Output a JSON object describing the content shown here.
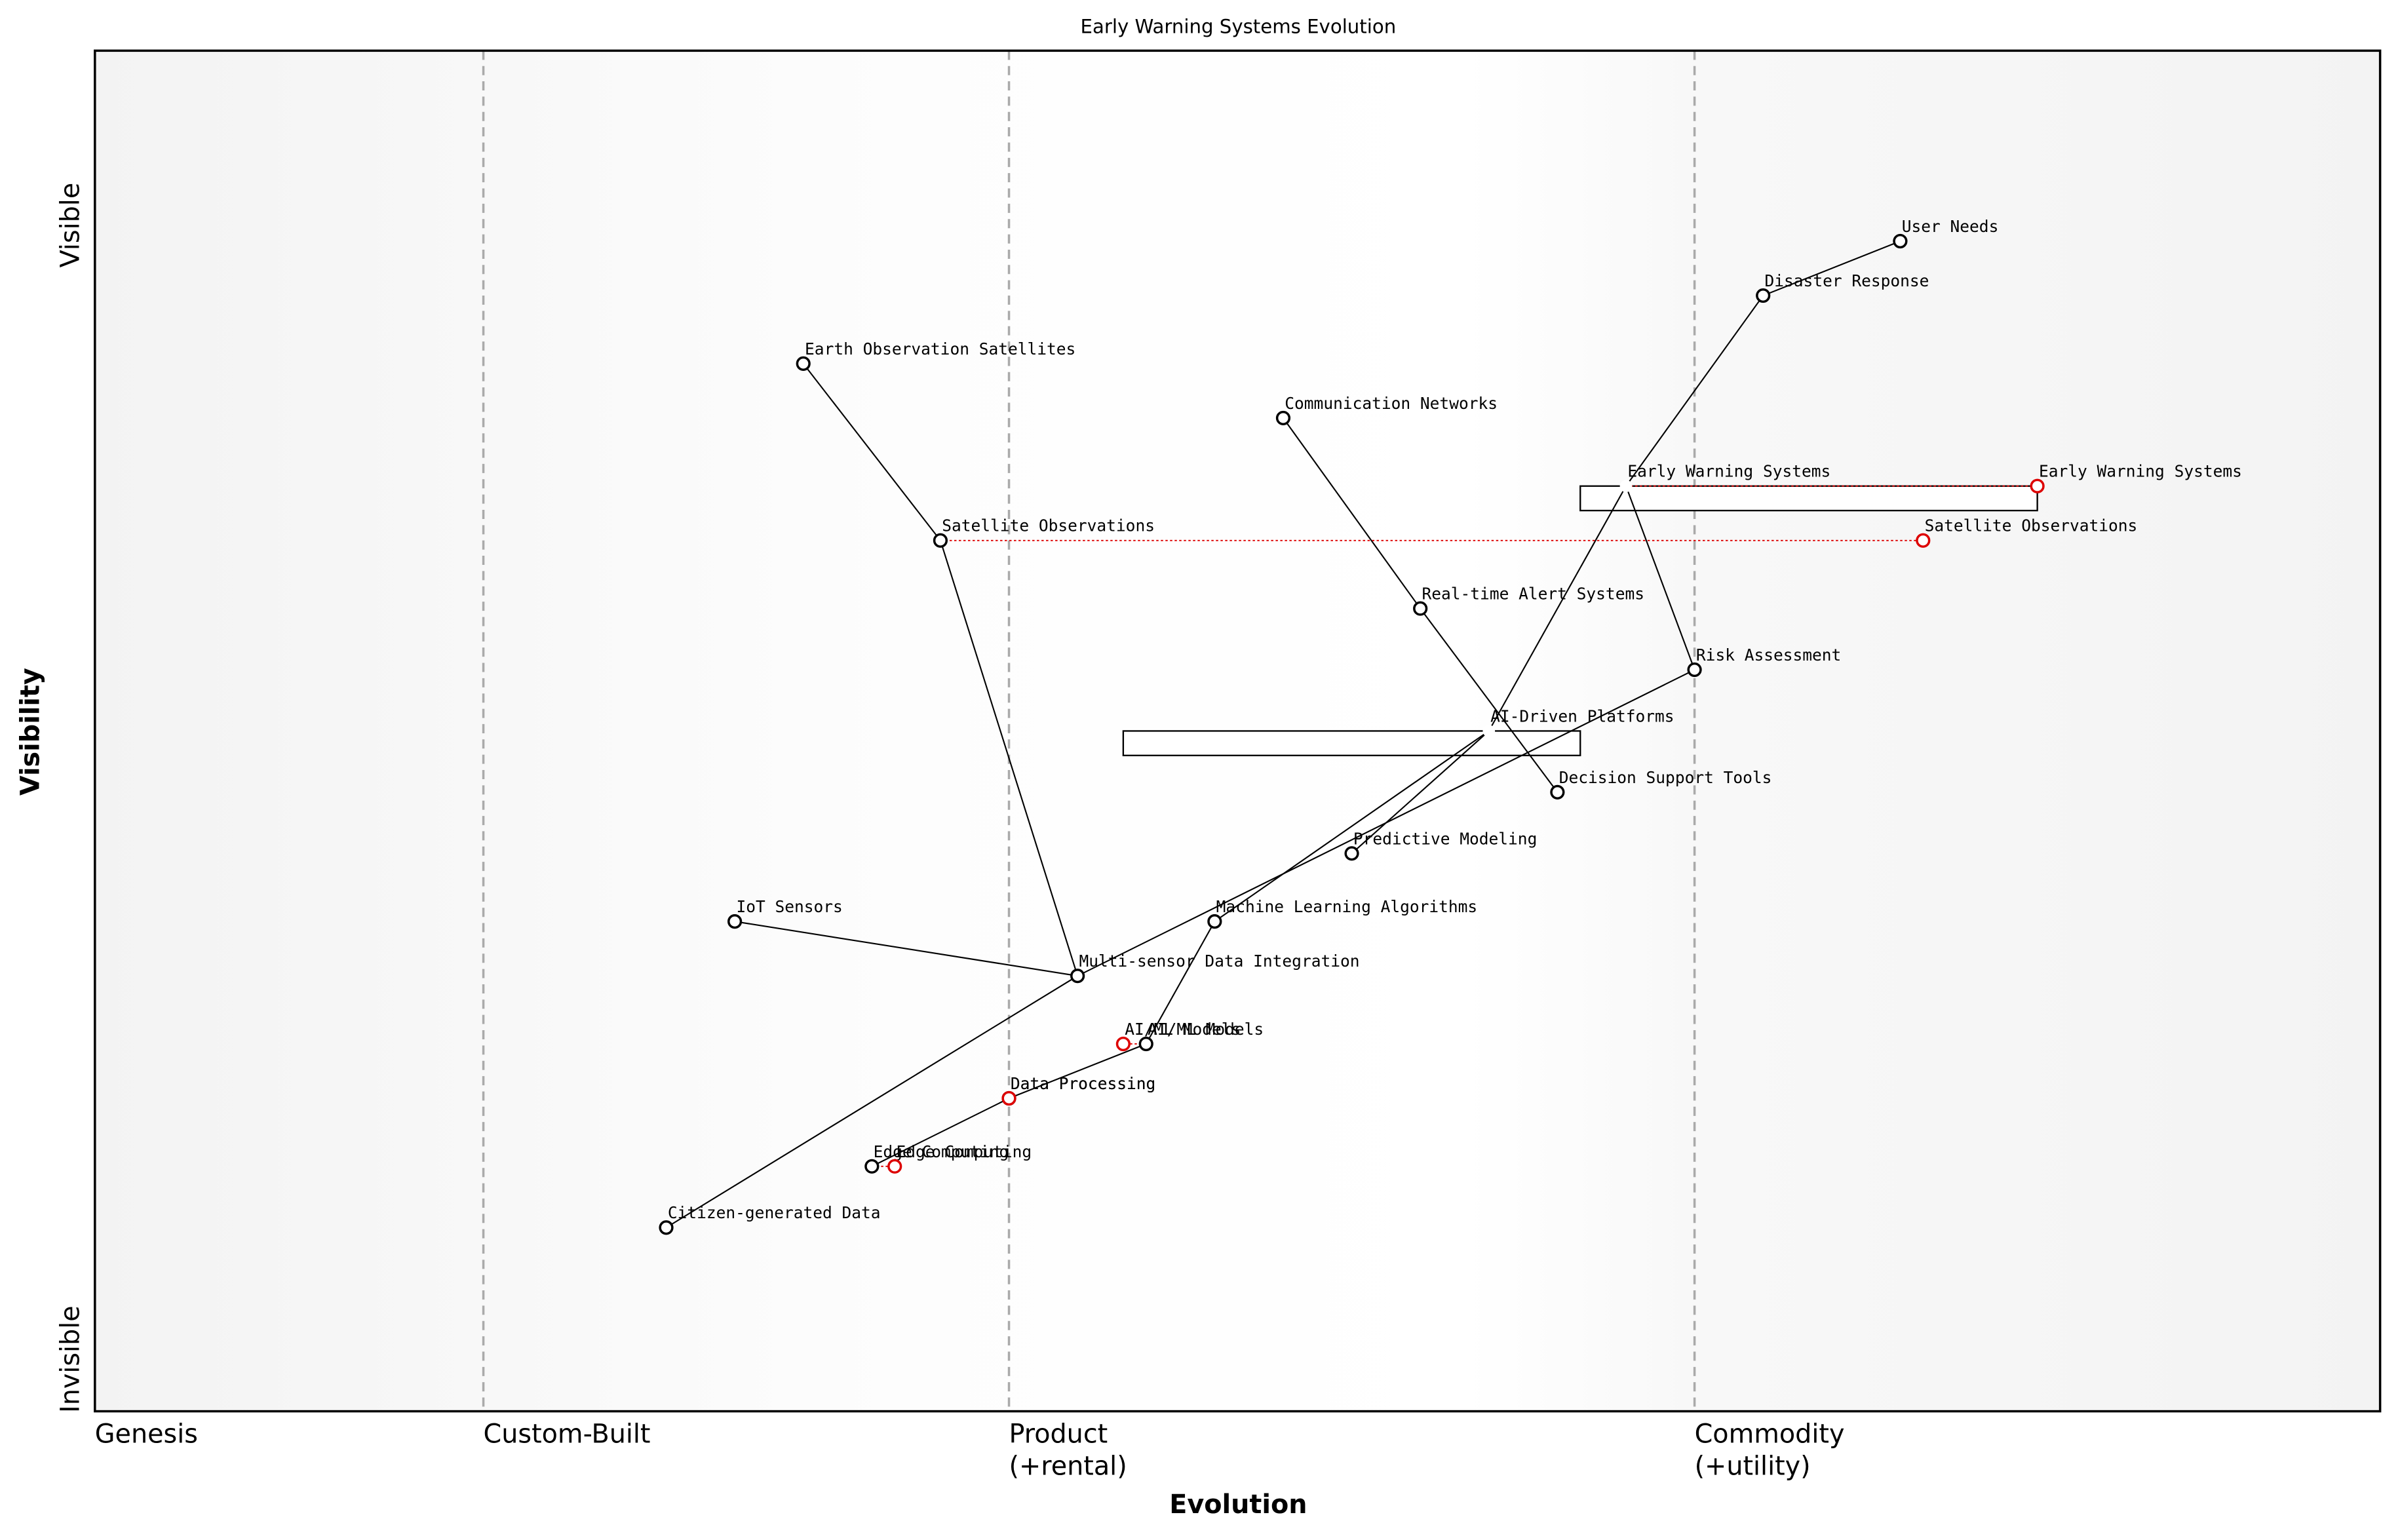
{
  "title": "Early Warning Systems Evolution",
  "x_label": "Evolution",
  "y_label": "Visibility",
  "y_top": "Visible",
  "y_bottom": "Invisible",
  "stages": [
    {
      "name": "Genesis",
      "position": 0
    },
    {
      "name": "Custom-Built",
      "position": 0.17
    },
    {
      "name": "Product",
      "note": "(+rental)",
      "position": 0.4
    },
    {
      "name": "Commodity",
      "note": "(+utility)",
      "position": 0.7
    }
  ],
  "components": [
    {
      "name": "User Needs",
      "evolution": 0.79,
      "visibility": 0.86
    },
    {
      "name": "Disaster Response",
      "evolution": 0.73,
      "visibility": 0.82
    },
    {
      "name": "Early Warning Systems",
      "evolution": 0.67,
      "visibility": 0.68
    },
    {
      "name": "Earth Observation Satellites",
      "evolution": 0.31,
      "visibility": 0.77
    },
    {
      "name": "Communication Networks",
      "evolution": 0.52,
      "visibility": 0.73
    },
    {
      "name": "Satellite Observations",
      "evolution": 0.37,
      "visibility": 0.64
    },
    {
      "name": "Real-time Alert Systems",
      "evolution": 0.58,
      "visibility": 0.59
    },
    {
      "name": "Risk Assessment",
      "evolution": 0.7,
      "visibility": 0.545
    },
    {
      "name": "AI-Driven Platforms",
      "evolution": 0.61,
      "visibility": 0.5
    },
    {
      "name": "Decision Support Tools",
      "evolution": 0.64,
      "visibility": 0.455
    },
    {
      "name": "Predictive Modeling",
      "evolution": 0.55,
      "visibility": 0.41
    },
    {
      "name": "IoT Sensors",
      "evolution": 0.28,
      "visibility": 0.36
    },
    {
      "name": "Machine Learning Algorithms",
      "evolution": 0.49,
      "visibility": 0.36
    },
    {
      "name": "Multi-sensor Data Integration",
      "evolution": 0.43,
      "visibility": 0.32
    },
    {
      "name": "AI/ML Models",
      "evolution": 0.46,
      "visibility": 0.27
    },
    {
      "name": "Data Processing",
      "evolution": 0.4,
      "visibility": 0.23
    },
    {
      "name": "Edge Computing",
      "evolution": 0.34,
      "visibility": 0.18
    },
    {
      "name": "Citizen-generated Data",
      "evolution": 0.25,
      "visibility": 0.135
    }
  ],
  "links": [
    [
      0,
      1
    ],
    [
      1,
      2
    ],
    [
      2,
      7
    ],
    [
      2,
      8
    ],
    [
      3,
      5
    ],
    [
      5,
      13
    ],
    [
      4,
      6
    ],
    [
      6,
      9
    ],
    [
      8,
      10
    ],
    [
      8,
      12
    ],
    [
      12,
      14
    ],
    [
      7,
      13
    ],
    [
      13,
      17
    ],
    [
      11,
      13
    ],
    [
      14,
      15
    ],
    [
      15,
      16
    ]
  ],
  "pipelines": [
    {
      "component": 2,
      "start": 0.65,
      "end": 0.85
    },
    {
      "component": 8,
      "start": 0.45,
      "end": 0.65
    }
  ],
  "evolutions": [
    {
      "component": 2,
      "evolution": 0.85
    },
    {
      "component": 5,
      "evolution": 0.8
    },
    {
      "component": 14,
      "evolution": 0.45
    },
    {
      "component": 15,
      "evolution": 0.4
    },
    {
      "component": 16,
      "evolution": 0.35
    }
  ]
}
